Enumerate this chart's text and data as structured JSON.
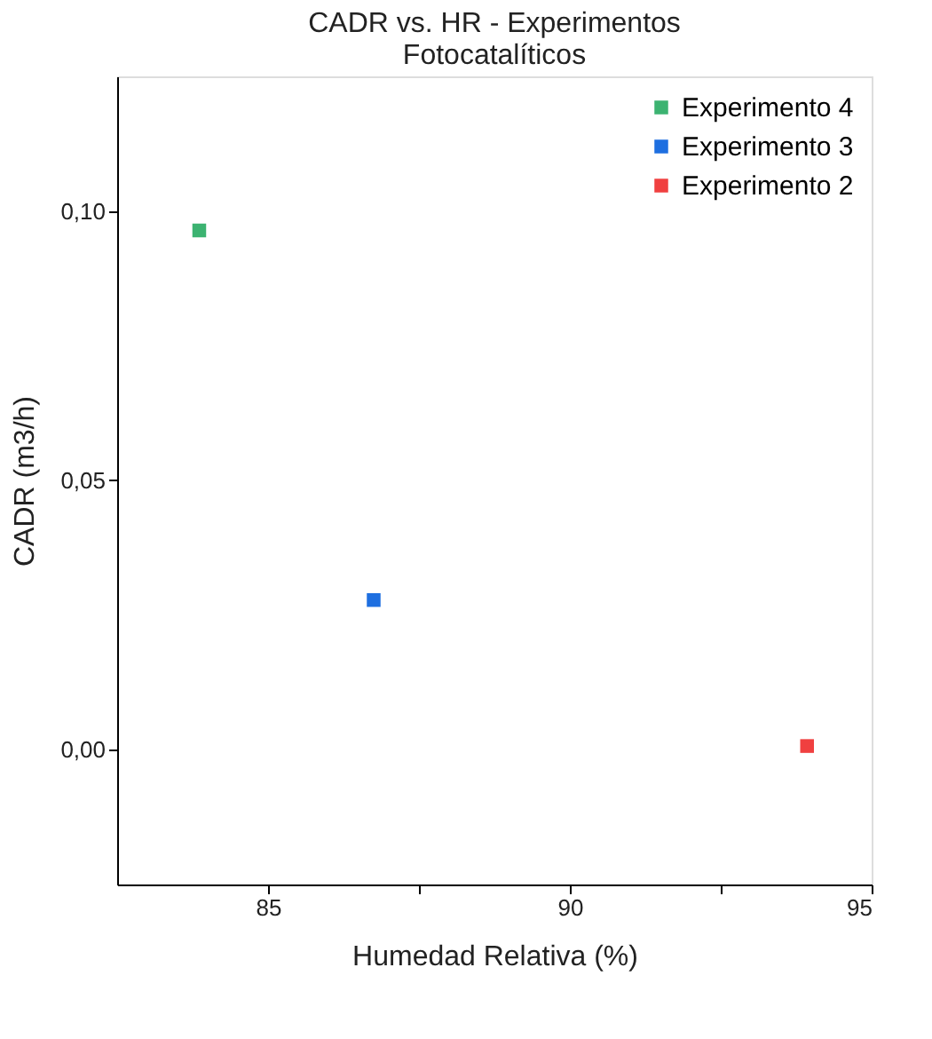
{
  "chart_data": {
    "type": "scatter",
    "title": "CADR vs. HR - Experimentos\nFotocatalíticos",
    "xlabel": "Humedad Relativa (%)",
    "ylabel": "CADR (m3/h)",
    "series": [
      {
        "name": "Experimento 4",
        "color": "#3cb371",
        "x": [
          83.86
        ],
        "values": [
          0.0964
        ]
      },
      {
        "name": "Experimento 3",
        "color": "#1e6fe0",
        "x": [
          86.75
        ],
        "values": [
          0.0278
        ]
      },
      {
        "name": "Experimento 2",
        "color": "#f04040",
        "x": [
          93.93
        ],
        "values": [
          0.0007
        ]
      }
    ],
    "xlim": [
      82.5,
      95
    ],
    "xticks": [
      85,
      {
        "value": 87.5,
        "label": null
      },
      90,
      {
        "value": 92.5,
        "label": null
      },
      95
    ],
    "ylim": [
      -0.025,
      0.125
    ],
    "yticks": [
      {
        "value": 0,
        "label": "0,00"
      },
      {
        "value": 0.05,
        "label": "0,05"
      },
      {
        "value": 0.1,
        "label": "0,10"
      }
    ],
    "marker": "square",
    "legend": "top right",
    "grid": false
  }
}
